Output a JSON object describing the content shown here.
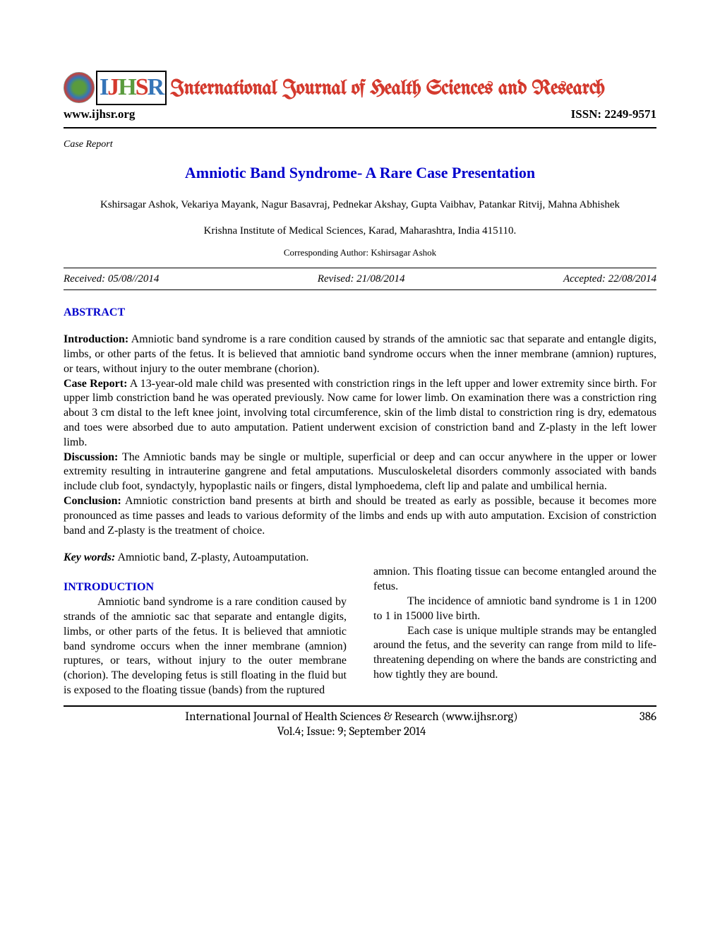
{
  "header": {
    "journal_title": "International Journal of Health Sciences and Research",
    "url": "www.ijhsr.org",
    "issn_label": "ISSN: 2249-9571"
  },
  "case_label": "Case Report",
  "title": "Amniotic Band Syndrome- A Rare Case Presentation",
  "authors": "Kshirsagar Ashok, Vekariya Mayank, Nagur Basavraj, Pednekar Akshay, Gupta Vaibhav, Patankar Ritvij, Mahna Abhishek",
  "affiliation": "Krishna Institute of Medical Sciences, Karad, Maharashtra, India 415110.",
  "corresponding": "Corresponding Author: Kshirsagar Ashok",
  "dates": {
    "received": "Received: 05/08//2014",
    "revised": "Revised: 21/08/2014",
    "accepted": "Accepted: 22/08/2014"
  },
  "abstract": {
    "heading": "ABSTRACT",
    "intro_lead": "Introduction:",
    "intro_body": " Amniotic band syndrome is a rare condition caused by strands of the amniotic sac that separate and entangle digits, limbs, or other parts of the fetus. It is believed that amniotic band syndrome occurs when the inner membrane (amnion) ruptures, or tears, without injury to the outer membrane (chorion).",
    "case_lead": "Case Report:",
    "case_body": " A 13-year-old male child was presented with constriction rings in the left upper and lower extremity since birth. For upper limb constriction band he was operated previously. Now came for lower limb. On examination there was a constriction ring about 3 cm distal to the left knee joint, involving total circumference, skin of the limb distal to constriction ring is dry, edematous and toes were absorbed due to auto amputation. Patient underwent excision of constriction band and Z-plasty in the left lower limb.",
    "disc_lead": "Discussion:",
    "disc_body": " The Amniotic bands may be single or multiple, superficial or deep and can occur anywhere in the upper or lower extremity resulting in intrauterine gangrene and fetal amputations. Musculoskeletal disorders commonly associated with bands include club foot, syndactyly, hypoplastic nails or fingers, distal lymphoedema, cleft lip and palate and umbilical hernia.",
    "conc_lead": "Conclusion:",
    "conc_body": " Amniotic constriction band presents at birth and should be treated as early as possible, because it becomes more pronounced as time passes and leads to various deformity of the limbs and ends up with auto amputation. Excision of constriction band and Z-plasty is the treatment of choice."
  },
  "keywords": {
    "lead": "Key words:",
    "body": "  Amniotic band, Z-plasty, Autoamputation."
  },
  "intro": {
    "heading": "INTRODUCTION",
    "col1_p1": "Amniotic band syndrome is a rare condition caused by strands of the amniotic sac that separate and entangle digits, limbs, or other parts of the fetus. It is believed that amniotic band syndrome occurs when the inner membrane (amnion) ruptures, or tears, without injury to the outer membrane (chorion). The developing fetus is still floating in the fluid but is exposed to the floating tissue (bands) from the ruptured",
    "col2_p1": "amnion. This floating tissue can become entangled around the fetus.",
    "col2_p2": "The incidence of amniotic band syndrome is 1 in 1200 to 1 in 15000 live birth.",
    "col2_p3": "Each case is unique multiple strands may be entangled around the fetus, and the severity can range from mild to life-threatening depending on where the bands are constricting and how tightly they are bound."
  },
  "footer": {
    "line1": "International Journal of Health Sciences & Research (www.ijhsr.org)",
    "line2": "Vol.4; Issue: 9; September 2014",
    "page": "386"
  },
  "colors": {
    "title_blue": "#0000cc",
    "journal_red": "#d43a2e"
  }
}
